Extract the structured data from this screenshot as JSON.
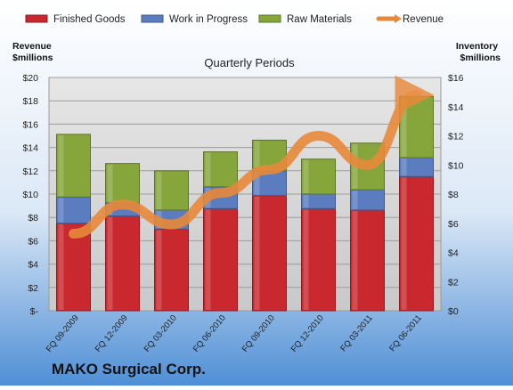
{
  "chart_data": {
    "type": "bar",
    "stacked": true,
    "title": "Quarterly Periods",
    "company": "MAKO Surgical Corp.",
    "y_left_label": [
      "Revenue",
      "$millions"
    ],
    "y_right_label": [
      "Inventory",
      "$millions"
    ],
    "categories": [
      "FQ 09-2009",
      "FQ 12-2009",
      "FQ 03-2010",
      "FQ 06-2010",
      "FQ 09-2010",
      "FQ 12-2010",
      "FQ 03-2011",
      "FQ 06-2011"
    ],
    "ylim_left": [
      0,
      20
    ],
    "ylim_right": [
      0,
      16
    ],
    "left_ticks": [
      "$-",
      "$2",
      "$4",
      "$6",
      "$8",
      "$10",
      "$12",
      "$14",
      "$16",
      "$18",
      "$20"
    ],
    "right_ticks": [
      "$0",
      "$2",
      "$4",
      "$6",
      "$8",
      "$10",
      "$12",
      "$14",
      "$16"
    ],
    "grid": true,
    "legend_position": "top",
    "series": [
      {
        "name": "Finished Goods",
        "axis": "right",
        "kind": "bar",
        "color": "#c8282e",
        "values": [
          6.0,
          6.5,
          5.6,
          7.0,
          7.9,
          7.0,
          6.9,
          9.2
        ]
      },
      {
        "name": "Work in Progress",
        "axis": "right",
        "kind": "bar",
        "color": "#5b7cbf",
        "values": [
          1.8,
          0.9,
          1.3,
          1.5,
          1.7,
          1.0,
          1.4,
          1.3
        ]
      },
      {
        "name": "Raw Materials",
        "axis": "right",
        "kind": "bar",
        "color": "#86a63c",
        "values": [
          4.3,
          2.7,
          2.7,
          2.4,
          2.1,
          2.4,
          3.2,
          4.2
        ]
      },
      {
        "name": "Revenue",
        "axis": "left",
        "kind": "line",
        "color": "#e8893a",
        "values": [
          6.6,
          9.1,
          7.4,
          10.1,
          12.1,
          15.0,
          12.5,
          18.5
        ]
      }
    ]
  }
}
